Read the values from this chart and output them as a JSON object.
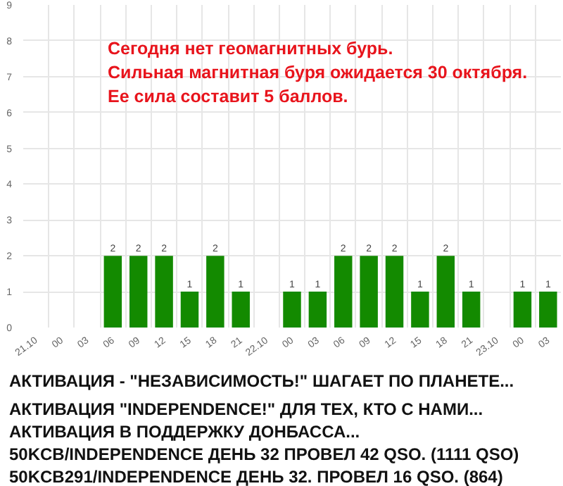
{
  "chart_data": {
    "type": "bar",
    "categories": [
      "21.10",
      "00",
      "03",
      "06",
      "09",
      "12",
      "15",
      "18",
      "21",
      "22.10",
      "00",
      "03",
      "06",
      "09",
      "12",
      "15",
      "18",
      "21",
      "23.10",
      "00",
      "03"
    ],
    "values": [
      null,
      null,
      null,
      2,
      2,
      2,
      1,
      2,
      1,
      null,
      1,
      1,
      2,
      2,
      2,
      1,
      2,
      1,
      null,
      1,
      1
    ],
    "color": "#138a00",
    "ylim": [
      0,
      9
    ],
    "yticks": [
      0,
      1,
      2,
      3,
      4,
      5,
      6,
      7,
      8,
      9
    ],
    "grid": true,
    "data_labels": true,
    "annotations": [
      "Сегодня нет геомагнитных бурь.",
      "Сильная магнитная буря ожидается 30 октября.",
      "Ее сила составит 5 баллов.",
      "АКТИВАЦИЯ - \"НЕЗАВИСИМОСТЬ!\" ШАГАЕТ ПО ПЛАНЕТЕ...",
      "АКТИВАЦИЯ \"INDEPENDENCE!\" ДЛЯ ТЕХ, КТО С НАМИ...",
      "АКТИВАЦИЯ В ПОДДЕРЖКУ ДОНБАССА...",
      "50KCB/INDEPENDENCE ДЕНЬ 32 ПРОВЕЛ 42 QSO. (1111 QSO)",
      "50KCB291/INDEPENDENCE ДЕНЬ 32. ПРОВЕЛ 16 QSO. (864)"
    ]
  }
}
